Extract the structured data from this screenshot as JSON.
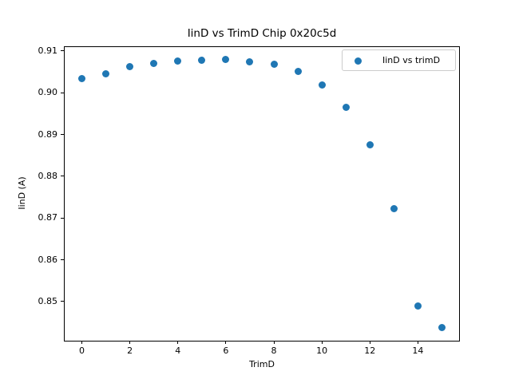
{
  "figure": {
    "background": "#ffffff",
    "text_color": "#000000",
    "legend_border_color": "#cccccc"
  },
  "chart_data": {
    "type": "scatter",
    "title": "IinD vs TrimD Chip 0x20c5d",
    "xlabel": "TrimD",
    "ylabel": "IinD (A)",
    "legend": {
      "label": "IinD vs trimD",
      "position": "upper right"
    },
    "marker_color": "#1f77b4",
    "grid": false,
    "x": [
      0,
      1,
      2,
      3,
      4,
      5,
      6,
      7,
      8,
      9,
      10,
      11,
      12,
      13,
      14,
      15
    ],
    "y": [
      0.9033,
      0.9046,
      0.9063,
      0.9071,
      0.9076,
      0.9078,
      0.908,
      0.9074,
      0.9068,
      0.9052,
      0.9019,
      0.8966,
      0.8876,
      0.8722,
      0.8489,
      0.8438
    ],
    "xlim": [
      -0.75,
      15.75
    ],
    "ylim": [
      0.8406,
      0.9112
    ],
    "xticks": {
      "values": [
        0,
        2,
        4,
        6,
        8,
        10,
        12,
        14
      ],
      "labels": [
        "0",
        "2",
        "4",
        "6",
        "8",
        "10",
        "12",
        "14"
      ]
    },
    "yticks": {
      "values": [
        0.85,
        0.86,
        0.87,
        0.88,
        0.89,
        0.9,
        0.91
      ],
      "labels": [
        "0.85",
        "0.86",
        "0.87",
        "0.88",
        "0.89",
        "0.90",
        "0.91"
      ]
    }
  }
}
